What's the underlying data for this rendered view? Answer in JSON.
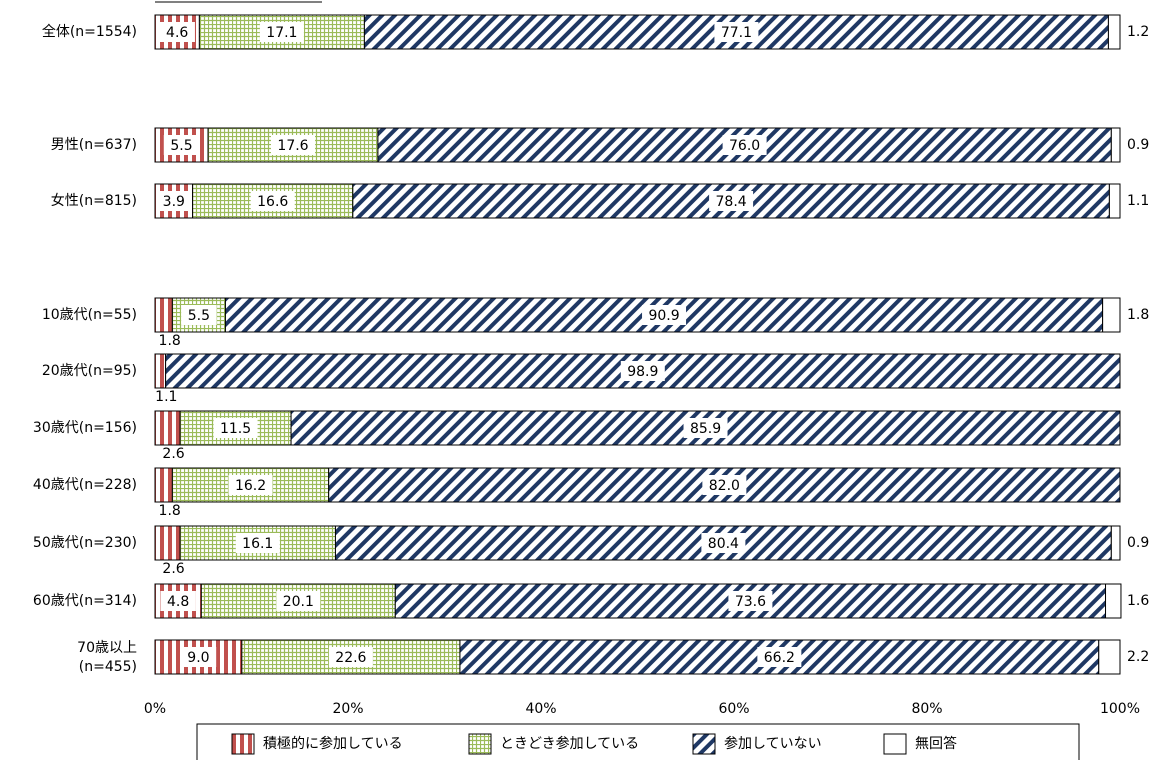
{
  "chart_data": {
    "type": "bar",
    "orientation": "horizontal",
    "stacked": true,
    "percent_stacked": true,
    "categories": [
      "全体(n=1554)",
      "男性(n=637)",
      "女性(n=815)",
      "10歳代(n=55)",
      "20歳代(n=95)",
      "30歳代(n=156)",
      "40歳代(n=228)",
      "50歳代(n=230)",
      "60歳代(n=314)",
      "70歳以上\n(n=455)"
    ],
    "series": [
      {
        "name": "積極的に参加している",
        "values": [
          4.6,
          5.5,
          3.9,
          1.8,
          1.1,
          2.6,
          1.8,
          2.6,
          4.8,
          9.0
        ],
        "color": "#c0504d"
      },
      {
        "name": "ときどき参加している",
        "values": [
          17.1,
          17.6,
          16.6,
          5.5,
          0,
          11.5,
          16.2,
          16.1,
          20.1,
          22.6
        ],
        "color": "#9bbb59"
      },
      {
        "name": "参加していない",
        "values": [
          77.1,
          76.0,
          78.4,
          90.9,
          98.9,
          85.9,
          82.0,
          80.4,
          73.6,
          66.2
        ],
        "color": "#1f3864"
      },
      {
        "name": "無回答",
        "values": [
          1.2,
          0.9,
          1.1,
          1.8,
          0,
          0,
          0,
          0.9,
          1.6,
          2.2
        ],
        "color": "#ffffff"
      }
    ],
    "xlim": [
      0,
      100
    ],
    "x_ticks": [
      "0%",
      "20%",
      "40%",
      "60%",
      "80%",
      "100%"
    ],
    "legend_position": "bottom",
    "grid": false
  }
}
